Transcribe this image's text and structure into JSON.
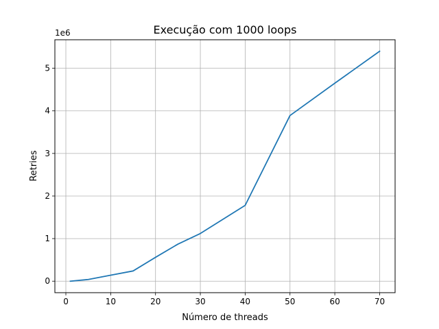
{
  "chart_data": {
    "type": "line",
    "title": "Execução com 1000 loops",
    "xlabel": "Número de threads",
    "ylabel": "Retries",
    "y_offset_label": "1e6",
    "xlim": [
      -2.45,
      73.45
    ],
    "ylim": [
      -0.27,
      5.67
    ],
    "x_ticks": [
      0,
      10,
      20,
      30,
      40,
      50,
      60,
      70
    ],
    "x_tick_labels": [
      "0",
      "10",
      "20",
      "30",
      "40",
      "50",
      "60",
      "70"
    ],
    "y_ticks": [
      0,
      1,
      2,
      3,
      4,
      5
    ],
    "y_tick_labels": [
      "0",
      "1",
      "2",
      "3",
      "4",
      "5"
    ],
    "grid": true,
    "series": [
      {
        "color": "#1f77b4",
        "x": [
          1,
          5,
          10,
          15,
          20,
          25,
          30,
          40,
          50,
          60,
          70
        ],
        "y": [
          0.0,
          0.04,
          0.14,
          0.24,
          0.56,
          0.87,
          1.12,
          1.78,
          3.89,
          4.65,
          5.4
        ]
      }
    ]
  }
}
